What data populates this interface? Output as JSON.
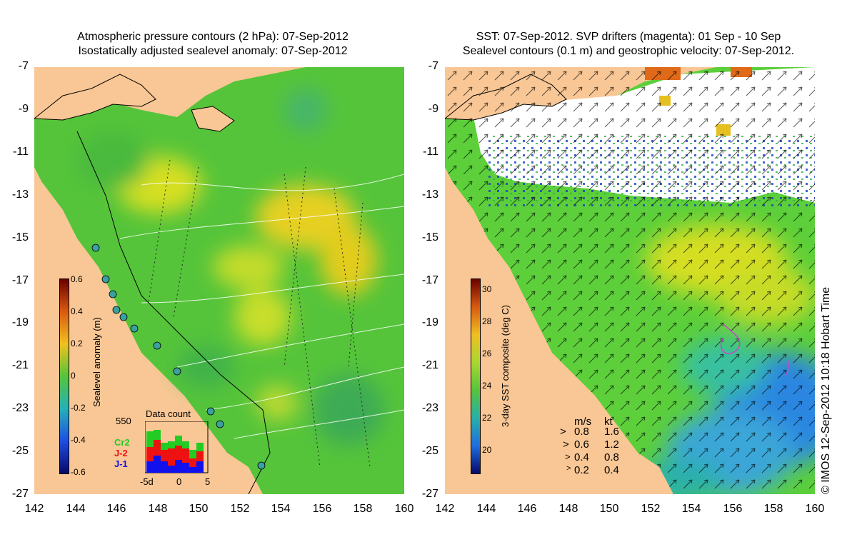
{
  "left": {
    "title_line1": "Atmospheric pressure contours (2 hPa): 07-Sep-2012",
    "title_line2": "Isostatically adjusted sealevel anomaly: 07-Sep-2012",
    "colorbar": {
      "title": "Sealevel anomaly (m)",
      "ticks": [
        "0.6",
        "0.4",
        "0.2",
        "0",
        "-0.2",
        "-0.4",
        "-0.6"
      ]
    },
    "data_count": {
      "title": "Data count",
      "ymax": "550",
      "series": [
        {
          "name": "Cr2",
          "color": "#22cc22"
        },
        {
          "name": "J-2",
          "color": "#ee1111"
        },
        {
          "name": "J-1",
          "color": "#1111ee"
        }
      ],
      "xticks": [
        "-5d",
        "0",
        "5"
      ]
    }
  },
  "right": {
    "title_line1": "SST: 07-Sep-2012. SVP drifters (magenta): 01 Sep - 10 Sep",
    "title_line2": "Sealevel contours (0.1 m) and geostrophic velocity: 07-Sep-2012.",
    "colorbar": {
      "title": "3-day SST composite (deg C)",
      "ticks": [
        "30",
        "28",
        "26",
        "24",
        "22",
        "20"
      ]
    },
    "velocity_legend": {
      "header_ms": "m/s",
      "header_kt": "kt",
      "rows": [
        {
          "ms": "0.8",
          "kt": "1.6"
        },
        {
          "ms": "0.6",
          "kt": "1.2"
        },
        {
          "ms": "0.4",
          "kt": "0.8"
        },
        {
          "ms": "0.2",
          "kt": "0.4"
        }
      ]
    }
  },
  "axes": {
    "y_ticks": [
      "-7",
      "-9",
      "-11",
      "-13",
      "-15",
      "-17",
      "-19",
      "-21",
      "-23",
      "-25",
      "-27"
    ],
    "x_ticks": [
      "142",
      "144",
      "146",
      "148",
      "150",
      "152",
      "154",
      "156",
      "158",
      "160"
    ]
  },
  "credit": "© IMOS 12-Sep-2012 10:18 Hobart Time",
  "colors": {
    "land": "#f9c795",
    "sea_green": "#55c43a",
    "sea_yellow": "#e6e01c",
    "sst_blue": "#2a86e0",
    "drifter": "#cc44cc"
  }
}
